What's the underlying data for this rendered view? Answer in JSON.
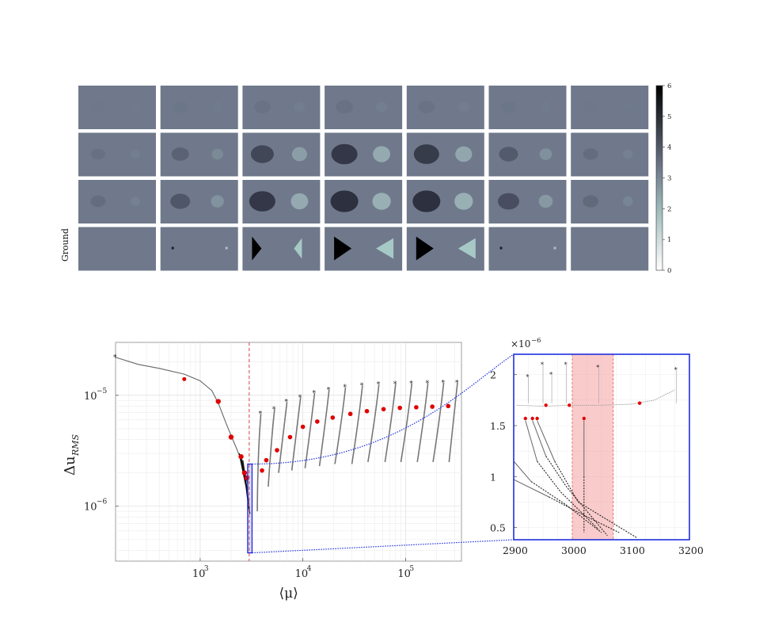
{
  "heatmap_grid": {
    "rows": 4,
    "cols": 7,
    "row_label_last": "Ground",
    "colorbar": {
      "min": 0,
      "max": 6,
      "ticks": [
        "0",
        "1",
        "2",
        "3",
        "4",
        "5",
        "6"
      ]
    },
    "intensity": [
      [
        0.05,
        0.15,
        0.25,
        0.3,
        0.25,
        0.15,
        0.05
      ],
      [
        0.1,
        0.3,
        0.65,
        0.85,
        0.8,
        0.4,
        0.15
      ],
      [
        0.15,
        0.45,
        0.85,
        0.95,
        0.95,
        0.55,
        0.2
      ],
      [
        0.0,
        0.2,
        1.0,
        1.0,
        1.0,
        0.2,
        0.0
      ]
    ]
  },
  "chart_data": [
    {
      "type": "line",
      "xscale": "log",
      "yscale": "log",
      "xlim": [
        150,
        350000
      ],
      "ylim": [
        3.2e-07,
        3e-05
      ],
      "xlabel": "⟨μ⟩",
      "ylabel": "Δu_RMS",
      "x_ticks": [
        "10^3",
        "10^4",
        "10^5"
      ],
      "y_ticks": [
        "10^-6",
        "10^-5"
      ],
      "vline_x": 3000,
      "main_curve": [
        [
          150,
          2.2e-05
        ],
        [
          250,
          1.9e-05
        ],
        [
          400,
          1.75e-05
        ],
        [
          700,
          1.55e-05
        ],
        [
          1000,
          1.35e-05
        ],
        [
          1300,
          1.1e-05
        ],
        [
          1500,
          8.5e-06
        ],
        [
          1800,
          5.5e-06
        ],
        [
          2100,
          3.9e-06
        ],
        [
          2400,
          2.9e-06
        ],
        [
          2700,
          2.1e-06
        ],
        [
          2900,
          1.6e-06
        ]
      ],
      "main_markers": [
        [
          700,
          1.4e-05
        ],
        [
          1500,
          8.8e-06
        ],
        [
          2000,
          4.2e-06
        ],
        [
          2500,
          2.8e-06
        ],
        [
          2700,
          2e-06
        ],
        [
          2850,
          1.8e-06
        ]
      ],
      "black_curves": [
        [
          [
            2400,
            3e-06
          ],
          [
            2800,
            1.5e-06
          ],
          [
            3000,
            9e-07
          ]
        ],
        [
          [
            2500,
            2.8e-06
          ],
          [
            2850,
            1.4e-06
          ],
          [
            3050,
            8.5e-07
          ]
        ],
        [
          [
            2600,
            2.6e-06
          ],
          [
            2900,
            1.3e-06
          ],
          [
            3000,
            9.5e-07
          ]
        ]
      ],
      "branches": [
        {
          "start": [
            3900,
            6.8e-06
          ],
          "end": [
            3600,
            9e-07
          ],
          "marker": [
            4000,
            2.1e-06
          ]
        },
        {
          "start": [
            5300,
            7.5e-06
          ],
          "end": [
            4600,
            1.5e-06
          ],
          "marker": [
            4400,
            2.6e-06
          ]
        },
        {
          "start": [
            7000,
            8.7e-06
          ],
          "end": [
            5800,
            2e-06
          ],
          "marker": [
            5600,
            3.2e-06
          ]
        },
        {
          "start": [
            9500,
            9.6e-06
          ],
          "end": [
            7800,
            2.1e-06
          ],
          "marker": [
            7500,
            4.2e-06
          ]
        },
        {
          "start": [
            13000,
            1.05e-05
          ],
          "end": [
            10500,
            2.2e-06
          ],
          "marker": [
            10000,
            5.2e-06
          ]
        },
        {
          "start": [
            18000,
            1.12e-05
          ],
          "end": [
            14500,
            2.3e-06
          ],
          "marker": [
            13800,
            5.8e-06
          ]
        },
        {
          "start": [
            26000,
            1.18e-05
          ],
          "end": [
            20500,
            2.4e-06
          ],
          "marker": [
            19500,
            6.3e-06
          ]
        },
        {
          "start": [
            38000,
            1.22e-05
          ],
          "end": [
            30000,
            2.4e-06
          ],
          "marker": [
            29000,
            6.8e-06
          ]
        },
        {
          "start": [
            55000,
            1.25e-05
          ],
          "end": [
            43000,
            2.5e-06
          ],
          "marker": [
            42000,
            7.2e-06
          ]
        },
        {
          "start": [
            80000,
            1.27e-05
          ],
          "end": [
            63000,
            2.5e-06
          ],
          "marker": [
            61000,
            7.5e-06
          ]
        },
        {
          "start": [
            115000,
            1.28e-05
          ],
          "end": [
            90000,
            2.5e-06
          ],
          "marker": [
            88000,
            7.7e-06
          ]
        },
        {
          "start": [
            165000,
            1.29e-05
          ],
          "end": [
            130000,
            2.5e-06
          ],
          "marker": [
            127000,
            7.8e-06
          ]
        },
        {
          "start": [
            235000,
            1.3e-05
          ],
          "end": [
            185000,
            2.5e-06
          ],
          "marker": [
            182000,
            7.9e-06
          ]
        },
        {
          "start": [
            320000,
            1.3e-05
          ],
          "end": [
            265000,
            2.5e-06
          ],
          "marker": [
            260000,
            8e-06
          ]
        }
      ],
      "zoom_box": {
        "x": [
          2900,
          3200
        ],
        "y": [
          3.8e-07,
          2.4e-06
        ]
      }
    },
    {
      "type": "line",
      "xlim": [
        2900,
        3200
      ],
      "ylim": [
        0.38,
        2.2
      ],
      "multiplier": "×10^-6",
      "x_ticks": [
        "2900",
        "3000",
        "3100",
        "3200"
      ],
      "y_ticks": [
        "0.5",
        "1",
        "1.5",
        "2"
      ],
      "shaded_x": [
        3000,
        3070
      ],
      "lines": [
        [
          [
            2900,
            0.97
          ],
          [
            2960,
            0.8
          ],
          [
            3020,
            0.62
          ],
          [
            3080,
            0.45
          ]
        ],
        [
          [
            2900,
            1.15
          ],
          [
            2930,
            0.95
          ],
          [
            2990,
            0.72
          ],
          [
            3050,
            0.45
          ]
        ],
        [
          [
            2920,
            1.55
          ],
          [
            2940,
            1.15
          ],
          [
            2980,
            0.85
          ],
          [
            3045,
            0.48
          ]
        ],
        [
          [
            2932,
            1.55
          ],
          [
            2955,
            1.2
          ],
          [
            2990,
            0.9
          ],
          [
            3060,
            0.42
          ]
        ],
        [
          [
            2940,
            1.55
          ],
          [
            2970,
            1.15
          ],
          [
            3010,
            0.75
          ],
          [
            3110,
            0.4
          ]
        ],
        [
          [
            3020,
            1.55
          ],
          [
            3020,
            1.0
          ],
          [
            3020,
            0.65
          ],
          [
            3020,
            0.45
          ]
        ]
      ],
      "markers": [
        [
          2920,
          1.57
        ],
        [
          2932,
          1.57
        ],
        [
          2940,
          1.57
        ],
        [
          2955,
          1.7
        ],
        [
          2995,
          1.7
        ],
        [
          3020,
          1.57
        ],
        [
          3115,
          1.72
        ]
      ],
      "stars": [
        [
          2925,
          1.98
        ],
        [
          2950,
          2.1
        ],
        [
          2965,
          2.0
        ],
        [
          2990,
          2.1
        ],
        [
          3045,
          2.07
        ],
        [
          3178,
          2.05
        ]
      ]
    }
  ]
}
